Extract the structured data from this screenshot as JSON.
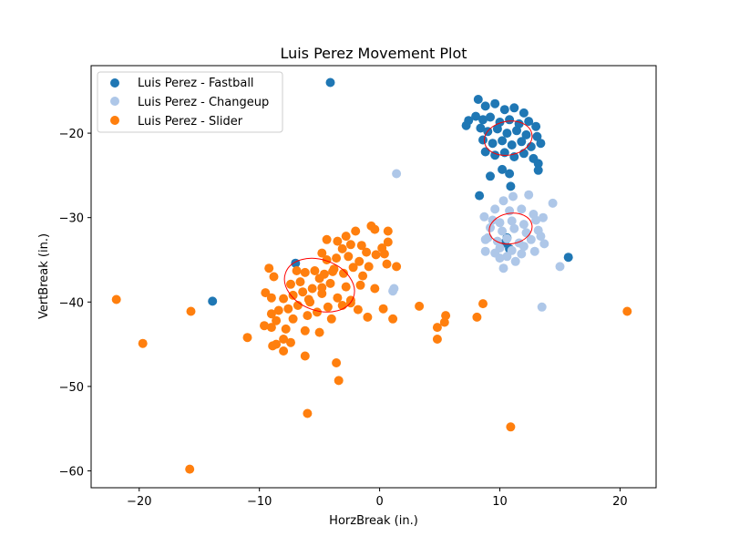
{
  "chart_data": {
    "type": "scatter",
    "title": "Luis Perez Movement Plot",
    "xlabel": "HorzBreak (in.)",
    "ylabel": "VertBreak (in.)",
    "xlim": [
      -24,
      23
    ],
    "ylim": [
      -62,
      -12
    ],
    "xticks": [
      -20,
      -10,
      0,
      10,
      20
    ],
    "yticks": [
      -20,
      -30,
      -40,
      -50,
      -60
    ],
    "grid": false,
    "legend_position": "top-left",
    "series": [
      {
        "name": "Luis Perez - Fastball",
        "color": "#1f77b4",
        "points": [
          [
            8.2,
            -16.0
          ],
          [
            8.8,
            -16.8
          ],
          [
            9.6,
            -16.5
          ],
          [
            10.4,
            -17.2
          ],
          [
            11.2,
            -17.0
          ],
          [
            12.0,
            -17.6
          ],
          [
            8.0,
            -18.0
          ],
          [
            8.6,
            -18.4
          ],
          [
            9.2,
            -18.1
          ],
          [
            10.0,
            -18.7
          ],
          [
            10.8,
            -18.4
          ],
          [
            11.6,
            -18.9
          ],
          [
            12.4,
            -18.6
          ],
          [
            13.0,
            -19.2
          ],
          [
            7.4,
            -18.5
          ],
          [
            7.2,
            -19.1
          ],
          [
            8.4,
            -19.4
          ],
          [
            9.0,
            -19.8
          ],
          [
            9.8,
            -19.5
          ],
          [
            10.6,
            -20.0
          ],
          [
            11.4,
            -19.7
          ],
          [
            12.2,
            -20.2
          ],
          [
            13.1,
            -20.4
          ],
          [
            8.6,
            -20.8
          ],
          [
            9.4,
            -21.2
          ],
          [
            10.2,
            -20.9
          ],
          [
            11.0,
            -21.4
          ],
          [
            11.8,
            -21.0
          ],
          [
            12.6,
            -21.6
          ],
          [
            13.4,
            -21.2
          ],
          [
            8.8,
            -22.2
          ],
          [
            9.6,
            -22.6
          ],
          [
            10.4,
            -22.3
          ],
          [
            11.2,
            -22.8
          ],
          [
            12.0,
            -22.4
          ],
          [
            12.8,
            -23.0
          ],
          [
            13.2,
            -23.6
          ],
          [
            10.2,
            -24.3
          ],
          [
            10.8,
            -24.8
          ],
          [
            13.2,
            -24.4
          ],
          [
            9.2,
            -25.1
          ],
          [
            10.9,
            -26.3
          ],
          [
            8.3,
            -27.4
          ],
          [
            10.6,
            -32.4
          ],
          [
            10.4,
            -33.0
          ],
          [
            10.8,
            -33.7
          ],
          [
            15.7,
            -34.7
          ],
          [
            -7.0,
            -35.4
          ],
          [
            -13.9,
            -39.9
          ],
          [
            -4.1,
            -14.0
          ]
        ]
      },
      {
        "name": "Luis Perez - Changeup",
        "color": "#aec7e8",
        "points": [
          [
            12.4,
            -27.3
          ],
          [
            11.1,
            -27.5
          ],
          [
            10.3,
            -28.0
          ],
          [
            14.4,
            -28.3
          ],
          [
            9.6,
            -29.0
          ],
          [
            10.8,
            -29.2
          ],
          [
            11.8,
            -29.0
          ],
          [
            12.8,
            -29.6
          ],
          [
            8.7,
            -29.9
          ],
          [
            9.4,
            -30.3
          ],
          [
            10.0,
            -30.6
          ],
          [
            11.0,
            -30.4
          ],
          [
            12.0,
            -30.8
          ],
          [
            13.0,
            -30.3
          ],
          [
            13.6,
            -30.0
          ],
          [
            9.2,
            -31.2
          ],
          [
            10.2,
            -31.6
          ],
          [
            11.2,
            -31.3
          ],
          [
            12.2,
            -31.8
          ],
          [
            13.2,
            -31.5
          ],
          [
            9.0,
            -32.4
          ],
          [
            9.8,
            -32.8
          ],
          [
            10.6,
            -32.5
          ],
          [
            11.6,
            -33.0
          ],
          [
            12.6,
            -32.6
          ],
          [
            13.4,
            -32.2
          ],
          [
            8.8,
            -32.6
          ],
          [
            10.0,
            -33.6
          ],
          [
            11.0,
            -33.9
          ],
          [
            12.0,
            -33.4
          ],
          [
            13.7,
            -33.1
          ],
          [
            8.8,
            -34.0
          ],
          [
            9.6,
            -34.2
          ],
          [
            10.6,
            -34.6
          ],
          [
            11.8,
            -34.3
          ],
          [
            12.9,
            -34.0
          ],
          [
            10.0,
            -34.8
          ],
          [
            11.3,
            -35.2
          ],
          [
            10.3,
            -36.0
          ],
          [
            15.0,
            -35.8
          ],
          [
            13.5,
            -40.6
          ],
          [
            1.4,
            -24.8
          ],
          [
            1.2,
            -38.4
          ],
          [
            1.1,
            -38.7
          ]
        ]
      },
      {
        "name": "Luis Perez - Slider",
        "color": "#ff7f0e",
        "points": [
          [
            -2.0,
            -31.6
          ],
          [
            -0.7,
            -31.0
          ],
          [
            -0.4,
            -31.4
          ],
          [
            0.7,
            -31.6
          ],
          [
            -2.8,
            -32.2
          ],
          [
            -4.4,
            -32.6
          ],
          [
            -3.5,
            -32.8
          ],
          [
            0.7,
            -32.9
          ],
          [
            -2.4,
            -33.2
          ],
          [
            -1.5,
            -33.3
          ],
          [
            0.2,
            -33.6
          ],
          [
            -3.1,
            -33.7
          ],
          [
            -1.1,
            -34.1
          ],
          [
            -4.8,
            -34.2
          ],
          [
            -0.3,
            -34.4
          ],
          [
            0.4,
            -34.3
          ],
          [
            -2.6,
            -34.6
          ],
          [
            -3.6,
            -34.8
          ],
          [
            -4.4,
            -35.0
          ],
          [
            -1.7,
            -35.2
          ],
          [
            0.6,
            -35.5
          ],
          [
            1.4,
            -35.8
          ],
          [
            -0.9,
            -35.8
          ],
          [
            -2.2,
            -35.9
          ],
          [
            -3.8,
            -36.1
          ],
          [
            -5.4,
            -36.3
          ],
          [
            -6.2,
            -36.5
          ],
          [
            -4.6,
            -36.7
          ],
          [
            -3.0,
            -36.6
          ],
          [
            -1.4,
            -36.9
          ],
          [
            -9.2,
            -36.0
          ],
          [
            -8.8,
            -37.0
          ],
          [
            -5.0,
            -37.2
          ],
          [
            -6.6,
            -37.6
          ],
          [
            -7.4,
            -37.9
          ],
          [
            -4.1,
            -37.8
          ],
          [
            -2.8,
            -38.2
          ],
          [
            -0.4,
            -38.4
          ],
          [
            -1.6,
            -38.0
          ],
          [
            -5.6,
            -38.4
          ],
          [
            -6.4,
            -38.8
          ],
          [
            -7.2,
            -39.2
          ],
          [
            -8.0,
            -39.6
          ],
          [
            -4.8,
            -39.0
          ],
          [
            -3.5,
            -39.5
          ],
          [
            -2.4,
            -39.8
          ],
          [
            -9.5,
            -38.9
          ],
          [
            -9.0,
            -39.5
          ],
          [
            -5.8,
            -40.0
          ],
          [
            -6.8,
            -40.4
          ],
          [
            -7.6,
            -40.8
          ],
          [
            -8.4,
            -41.0
          ],
          [
            -4.3,
            -40.6
          ],
          [
            -3.1,
            -40.4
          ],
          [
            -9.0,
            -41.4
          ],
          [
            -5.2,
            -41.2
          ],
          [
            -6.0,
            -41.6
          ],
          [
            -7.2,
            -42.0
          ],
          [
            -8.6,
            -42.2
          ],
          [
            -4.0,
            -42.0
          ],
          [
            -1.8,
            -40.9
          ],
          [
            0.3,
            -40.8
          ],
          [
            -9.6,
            -42.8
          ],
          [
            -9.0,
            -43.0
          ],
          [
            -7.8,
            -43.2
          ],
          [
            -6.2,
            -43.4
          ],
          [
            -5.0,
            -43.6
          ],
          [
            -8.0,
            -44.4
          ],
          [
            -8.6,
            -45.0
          ],
          [
            -11.0,
            -44.2
          ],
          [
            -8.9,
            -45.2
          ],
          [
            -7.4,
            -44.8
          ],
          [
            -8.0,
            -45.8
          ],
          [
            -6.2,
            -46.4
          ],
          [
            1.1,
            -42.0
          ],
          [
            3.3,
            -40.5
          ],
          [
            -3.6,
            -47.2
          ],
          [
            -3.4,
            -49.3
          ],
          [
            -6.0,
            -53.2
          ],
          [
            -15.8,
            -59.8
          ],
          [
            -15.7,
            -41.1
          ],
          [
            -19.7,
            -44.9
          ],
          [
            -21.9,
            -39.7
          ],
          [
            4.8,
            -43.0
          ],
          [
            4.8,
            -44.4
          ],
          [
            5.4,
            -42.4
          ],
          [
            5.5,
            -41.6
          ],
          [
            8.1,
            -41.8
          ],
          [
            8.6,
            -40.2
          ],
          [
            10.9,
            -54.8
          ],
          [
            20.6,
            -41.1
          ],
          [
            -2.4,
            -40.1
          ],
          [
            -1.0,
            -41.8
          ],
          [
            -4.8,
            -38.3
          ],
          [
            -5.9,
            -39.7
          ],
          [
            -6.9,
            -36.3
          ],
          [
            -3.9,
            -36.4
          ]
        ]
      }
    ],
    "ellipses": [
      {
        "series": "Luis Perez - Fastball",
        "center": [
          10.7,
          -20.6
        ],
        "width": 4.0,
        "height": 4.0,
        "angle": -10,
        "color": "#ff0000"
      },
      {
        "series": "Luis Perez - Changeup",
        "center": [
          10.9,
          -31.3
        ],
        "width": 3.6,
        "height": 3.6,
        "angle": -10,
        "color": "#ff0000"
      },
      {
        "series": "Luis Perez - Slider",
        "center": [
          -5.0,
          -38.0
        ],
        "width": 6.0,
        "height": 6.0,
        "angle": 20,
        "color": "#ff0000"
      }
    ]
  }
}
